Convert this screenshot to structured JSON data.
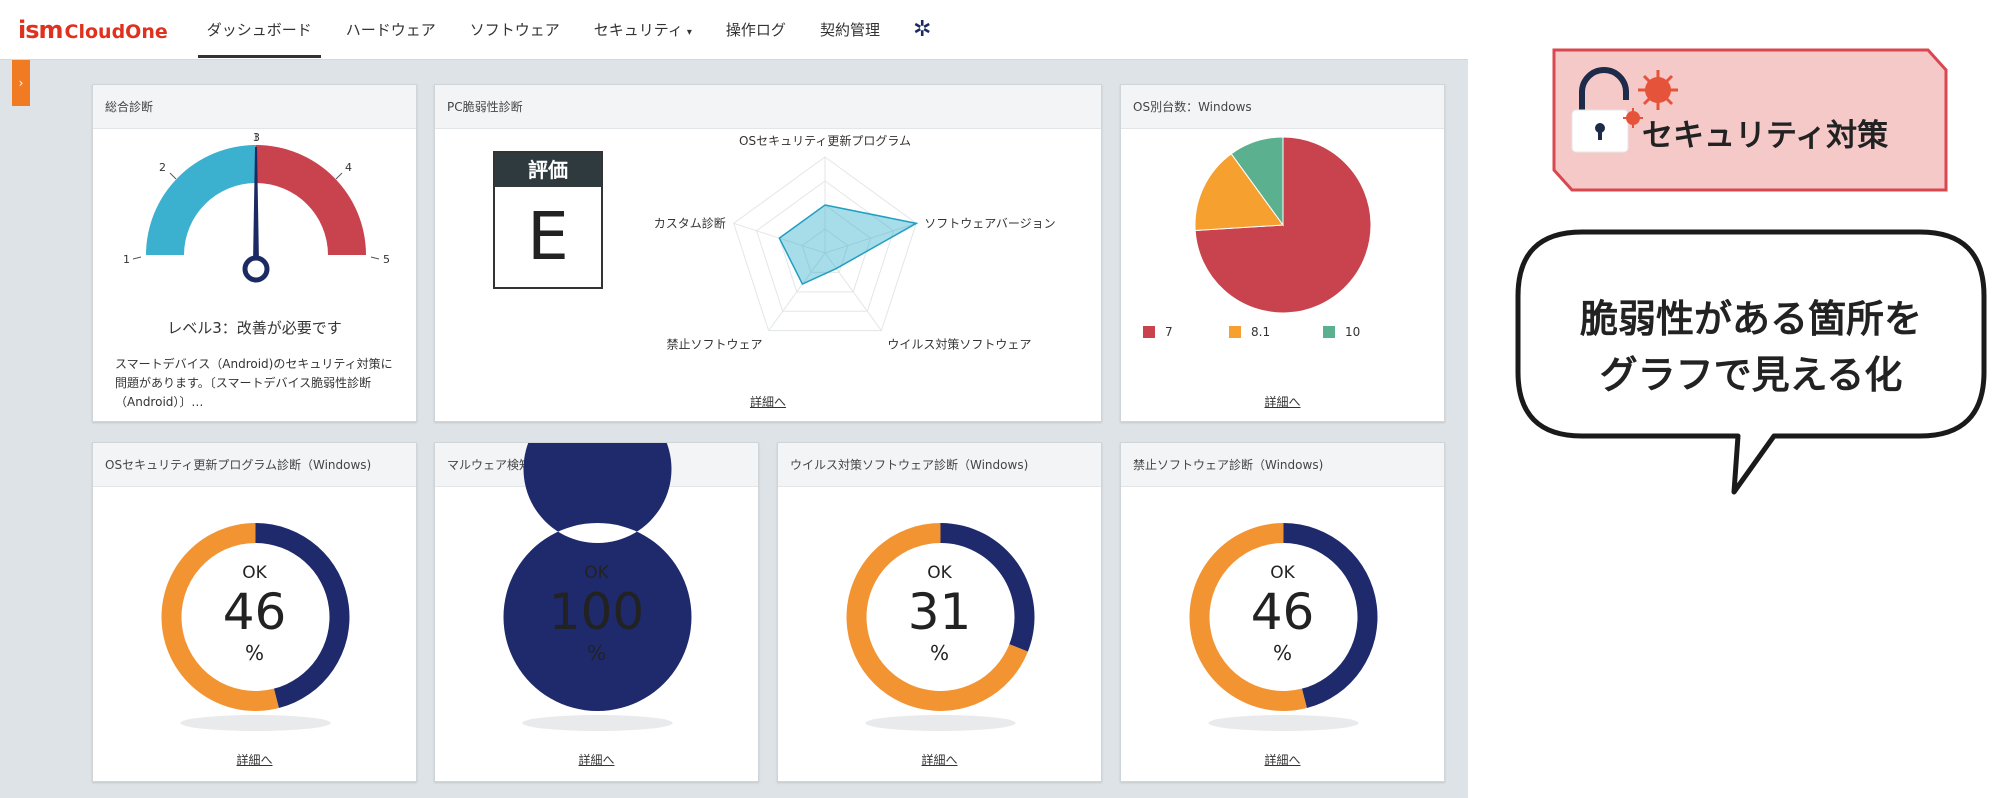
{
  "header": {
    "logo_ism": "ism",
    "logo_brand": "CloudOne",
    "nav": [
      {
        "label": "ダッシュボード"
      },
      {
        "label": "ハードウェア"
      },
      {
        "label": "ソフトウェア"
      },
      {
        "label": "セキュリティ"
      },
      {
        "label": "操作ログ"
      },
      {
        "label": "契約管理"
      }
    ],
    "security_caret": "▾",
    "settings_icon": "gear-icon"
  },
  "side_toggle": "›",
  "detail_label": "詳細へ",
  "panels": {
    "overall": {
      "title": "総合診断",
      "gauge_ticks": [
        "1",
        "2",
        "3",
        "4",
        "5"
      ],
      "gauge_value": 3,
      "level_text": "レベル3：改善が必要です",
      "description": "スマートデバイス（Android)のセキュリティ対策に問題があります。〔スマートデバイス脆弱性診断（Android）〕…",
      "colors": {
        "safe": "#3cb1cf",
        "danger": "#c8434d",
        "needle": "#1b2a63"
      }
    },
    "pc_vuln": {
      "title": "PC脆弱性診断",
      "eval_header": "評価",
      "eval_grade": "E",
      "radar_axes": [
        "OSセキュリティ更新プログラム",
        "ソフトウェアバージョン",
        "ウイルス対策ソフトウェア",
        "禁止ソフトウェア",
        "カスタム診断"
      ],
      "radar_values": [
        0.5,
        1.0,
        0.2,
        0.4,
        0.5
      ],
      "radar_color": "#3cb1cf"
    },
    "os_count": {
      "title": "OS別台数：Windows",
      "legend": [
        {
          "label": "7",
          "color": "#c8434d"
        },
        {
          "label": "8.1",
          "color": "#f6a02f"
        },
        {
          "label": "10",
          "color": "#5bb08f"
        }
      ]
    },
    "os_update": {
      "title": "OSセキュリティ更新プログラム診断（Windows)",
      "ok": "OK",
      "value": "46",
      "unit": "%",
      "fraction": 0.46
    },
    "malware": {
      "title": "マルウェア検知率",
      "ok": "OK",
      "value": "100",
      "unit": "%",
      "fraction": 1.0
    },
    "antivirus": {
      "title": "ウイルス対策ソフトウェア診断（Windows)",
      "ok": "OK",
      "value": "31",
      "unit": "%",
      "fraction": 0.31
    },
    "banned": {
      "title": "禁止ソフトウェア診断（Windows)",
      "ok": "OK",
      "value": "46",
      "unit": "%",
      "fraction": 0.46
    }
  },
  "donut_colors": {
    "ok": "#1e2a6b",
    "ng": "#f39433"
  },
  "chart_data": [
    {
      "type": "pie",
      "title": "OS別台数：Windows",
      "categories": [
        "7",
        "8.1",
        "10"
      ],
      "values": [
        74,
        16,
        10
      ],
      "colors": [
        "#c8434d",
        "#f6a02f",
        "#5bb08f"
      ]
    }
  ],
  "overlay": {
    "badge_text": "セキュリティ対策",
    "badge_colors": {
      "fill": "#f6c9c9",
      "border": "#d9474f"
    },
    "callout_line1": "脆弱性がある箇所を",
    "callout_line2": "グラフで見える化"
  }
}
